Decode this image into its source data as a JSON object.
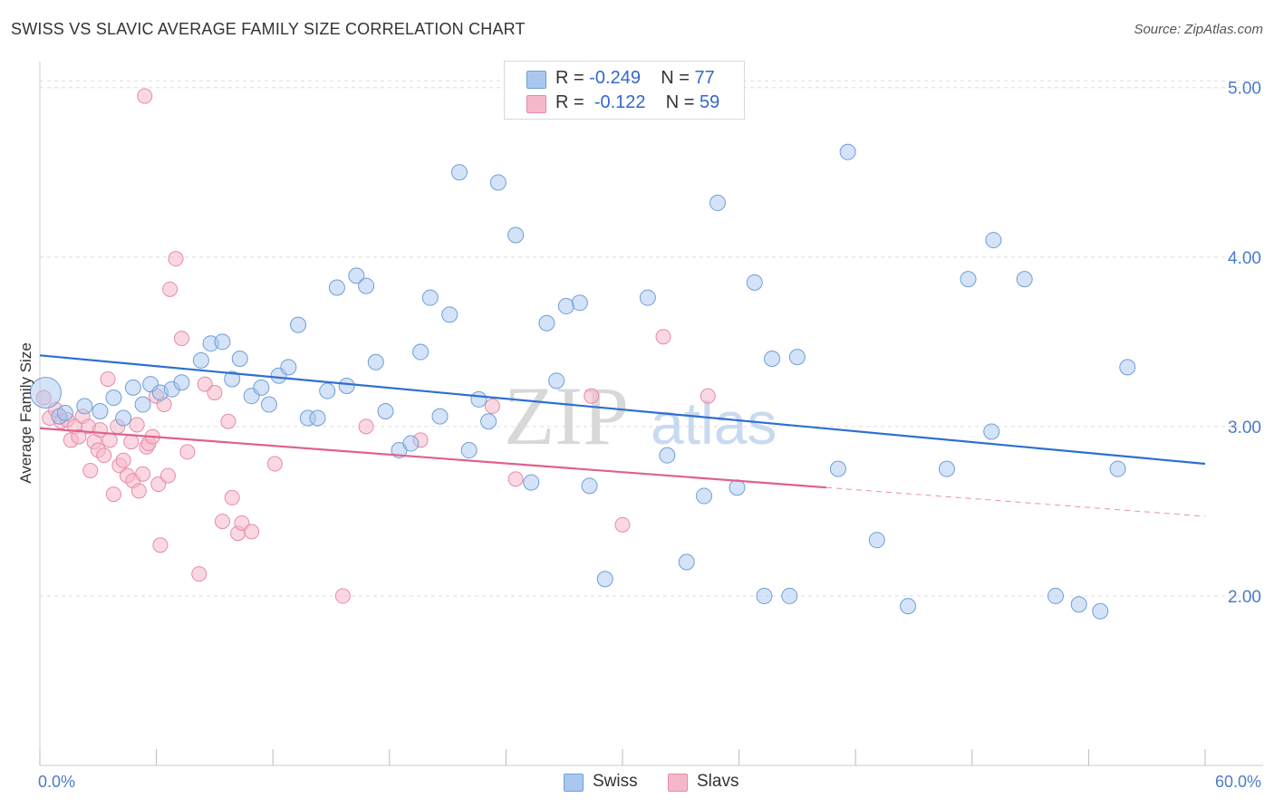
{
  "title": "SWISS VS SLAVIC AVERAGE FAMILY SIZE CORRELATION CHART",
  "source": "Source: ZipAtlas.com",
  "watermark": {
    "zip": "ZIP",
    "atlas": "atlas"
  },
  "legend": {
    "swiss": {
      "r_label": "R =",
      "r_value": "-0.249",
      "n_label": "N =",
      "n_value": "77"
    },
    "slavs": {
      "r_label": "R =",
      "r_value": "-0.122",
      "n_label": "N =",
      "n_value": "59"
    }
  },
  "colors": {
    "swiss_fill": "#aac8ef",
    "swiss_stroke": "#6f9fd8",
    "swiss_line": "#2e6fd1",
    "slavs_fill": "#f5b8cb",
    "slavs_stroke": "#e88aa6",
    "slavs_line": "#e0608c",
    "grid": "#dddddd",
    "tick_label": "#4a7cc9"
  },
  "chart_data": {
    "type": "scatter",
    "title": "SWISS VS SLAVIC AVERAGE FAMILY SIZE CORRELATION CHART",
    "xlabel": "",
    "ylabel": "Average Family Size",
    "xlim": [
      0,
      60
    ],
    "ylim": [
      1.0,
      5.1
    ],
    "x_tick_labels": [
      "0.0%",
      "60.0%"
    ],
    "y_ticks": [
      2.0,
      3.0,
      4.0,
      5.0
    ],
    "y_tick_labels": [
      "2.00",
      "3.00",
      "4.00",
      "5.00"
    ],
    "grid": "horizontal dashed",
    "legend_position": "top-center",
    "series": [
      {
        "name": "Swiss",
        "points": [
          [
            0.3,
            3.2
          ],
          [
            1.0,
            3.06
          ],
          [
            1.3,
            3.08
          ],
          [
            2.3,
            3.12
          ],
          [
            3.1,
            3.09
          ],
          [
            3.8,
            3.17
          ],
          [
            4.3,
            3.05
          ],
          [
            4.8,
            3.23
          ],
          [
            5.3,
            3.13
          ],
          [
            5.7,
            3.25
          ],
          [
            6.2,
            3.2
          ],
          [
            6.8,
            3.22
          ],
          [
            7.3,
            3.26
          ],
          [
            8.3,
            3.39
          ],
          [
            8.8,
            3.49
          ],
          [
            9.4,
            3.5
          ],
          [
            9.9,
            3.28
          ],
          [
            10.3,
            3.4
          ],
          [
            10.9,
            3.18
          ],
          [
            11.4,
            3.23
          ],
          [
            11.8,
            3.13
          ],
          [
            12.3,
            3.3
          ],
          [
            12.8,
            3.35
          ],
          [
            13.3,
            3.6
          ],
          [
            13.8,
            3.05
          ],
          [
            14.3,
            3.05
          ],
          [
            14.8,
            3.21
          ],
          [
            15.3,
            3.82
          ],
          [
            15.8,
            3.24
          ],
          [
            16.3,
            3.89
          ],
          [
            16.8,
            3.83
          ],
          [
            17.3,
            3.38
          ],
          [
            17.8,
            3.09
          ],
          [
            18.5,
            2.86
          ],
          [
            19.1,
            2.9
          ],
          [
            19.6,
            3.44
          ],
          [
            20.1,
            3.76
          ],
          [
            20.6,
            3.06
          ],
          [
            21.1,
            3.66
          ],
          [
            21.6,
            4.5
          ],
          [
            22.1,
            2.86
          ],
          [
            22.6,
            3.16
          ],
          [
            23.1,
            3.03
          ],
          [
            23.6,
            4.44
          ],
          [
            24.5,
            4.13
          ],
          [
            25.3,
            2.67
          ],
          [
            26.1,
            3.61
          ],
          [
            26.6,
            3.27
          ],
          [
            27.1,
            3.71
          ],
          [
            27.8,
            3.73
          ],
          [
            28.3,
            2.65
          ],
          [
            29.1,
            2.1
          ],
          [
            31.3,
            3.76
          ],
          [
            32.3,
            2.83
          ],
          [
            33.3,
            2.2
          ],
          [
            34.2,
            2.59
          ],
          [
            34.9,
            4.32
          ],
          [
            35.9,
            2.64
          ],
          [
            36.8,
            3.85
          ],
          [
            37.3,
            2.0
          ],
          [
            37.7,
            3.4
          ],
          [
            38.6,
            2.0
          ],
          [
            39.0,
            3.41
          ],
          [
            41.1,
            2.75
          ],
          [
            41.6,
            4.62
          ],
          [
            43.1,
            2.33
          ],
          [
            44.7,
            1.94
          ],
          [
            46.7,
            2.75
          ],
          [
            47.8,
            3.87
          ],
          [
            49.0,
            2.97
          ],
          [
            49.1,
            4.1
          ],
          [
            50.7,
            3.87
          ],
          [
            52.3,
            2.0
          ],
          [
            53.5,
            1.95
          ],
          [
            54.6,
            1.91
          ],
          [
            55.5,
            2.75
          ],
          [
            56.0,
            3.35
          ]
        ],
        "trend": {
          "x": [
            0,
            60
          ],
          "y": [
            3.42,
            2.78
          ]
        }
      },
      {
        "name": "Slavs",
        "points": [
          [
            0.2,
            3.17
          ],
          [
            0.5,
            3.05
          ],
          [
            0.8,
            3.1
          ],
          [
            1.1,
            3.03
          ],
          [
            1.4,
            3.04
          ],
          [
            1.6,
            2.92
          ],
          [
            1.8,
            3.0
          ],
          [
            2.0,
            2.94
          ],
          [
            2.2,
            3.06
          ],
          [
            2.5,
            3.0
          ],
          [
            2.6,
            2.74
          ],
          [
            2.8,
            2.91
          ],
          [
            3.0,
            2.86
          ],
          [
            3.1,
            2.98
          ],
          [
            3.3,
            2.83
          ],
          [
            3.5,
            3.28
          ],
          [
            3.6,
            2.92
          ],
          [
            3.8,
            2.6
          ],
          [
            4.0,
            3.0
          ],
          [
            4.1,
            2.77
          ],
          [
            4.3,
            2.8
          ],
          [
            4.5,
            2.71
          ],
          [
            4.7,
            2.91
          ],
          [
            4.8,
            2.68
          ],
          [
            5.0,
            3.01
          ],
          [
            5.1,
            2.62
          ],
          [
            5.3,
            2.72
          ],
          [
            5.5,
            2.88
          ],
          [
            5.6,
            2.9
          ],
          [
            5.8,
            2.94
          ],
          [
            5.4,
            4.95
          ],
          [
            6.0,
            3.18
          ],
          [
            6.1,
            2.66
          ],
          [
            6.2,
            2.3
          ],
          [
            6.4,
            3.13
          ],
          [
            6.6,
            2.71
          ],
          [
            6.7,
            3.81
          ],
          [
            7.0,
            3.99
          ],
          [
            7.3,
            3.52
          ],
          [
            7.6,
            2.85
          ],
          [
            8.2,
            2.13
          ],
          [
            8.5,
            3.25
          ],
          [
            9.0,
            3.2
          ],
          [
            9.4,
            2.44
          ],
          [
            9.7,
            3.03
          ],
          [
            9.9,
            2.58
          ],
          [
            10.2,
            2.37
          ],
          [
            10.4,
            2.43
          ],
          [
            10.9,
            2.38
          ],
          [
            12.1,
            2.78
          ],
          [
            15.6,
            2.0
          ],
          [
            16.8,
            3.0
          ],
          [
            19.6,
            2.92
          ],
          [
            23.3,
            3.12
          ],
          [
            28.4,
            3.18
          ],
          [
            30.0,
            2.42
          ],
          [
            32.1,
            3.53
          ],
          [
            34.4,
            3.18
          ],
          [
            24.5,
            2.69
          ]
        ],
        "trend": {
          "x": [
            0,
            40.5
          ],
          "y": [
            2.99,
            2.64
          ],
          "dashed_extension": {
            "x": [
              40.5,
              60
            ],
            "y": [
              2.64,
              2.47
            ]
          }
        }
      }
    ]
  },
  "bottom_legend": {
    "swiss": "Swiss",
    "slavs": "Slavs"
  }
}
